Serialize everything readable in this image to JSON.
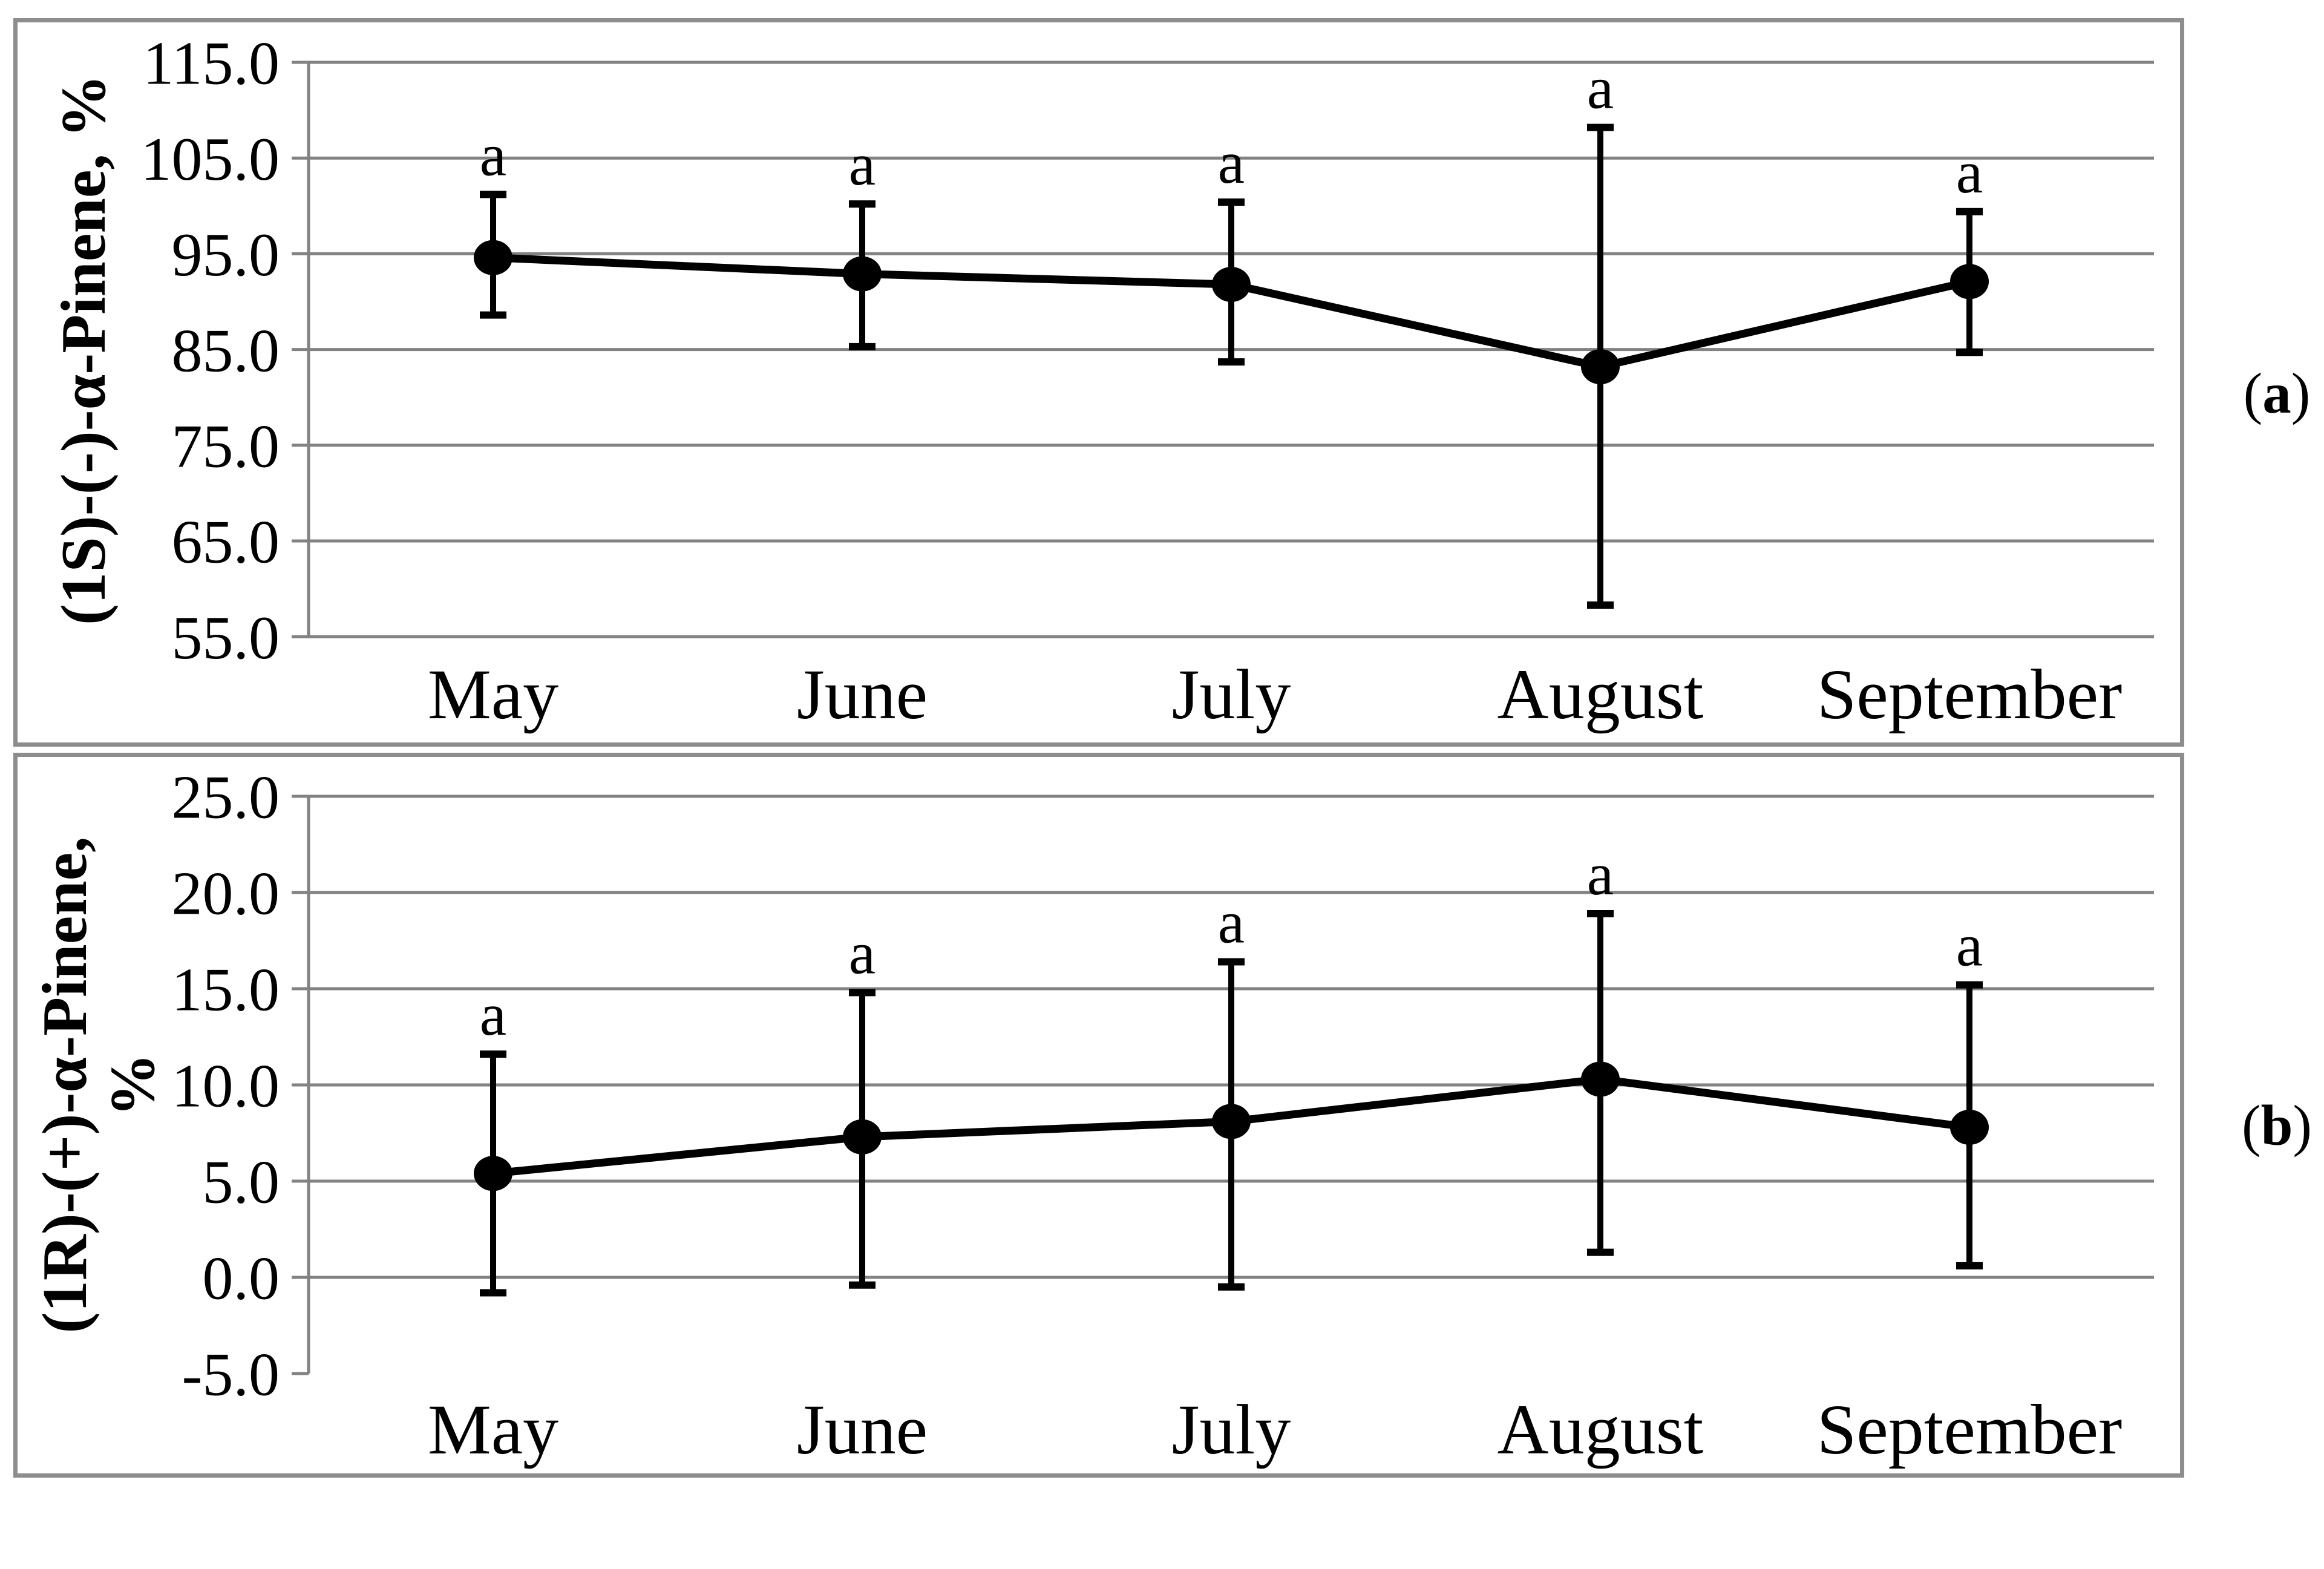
{
  "panel_labels": [
    {
      "prefix": "(",
      "letter": "a",
      "suffix": ")"
    },
    {
      "prefix": "(",
      "letter": "b",
      "suffix": ")"
    }
  ],
  "colors": {
    "background": "#ffffff",
    "gridline": "#828282",
    "panel_border": "#8d8d8d",
    "data": "#000000"
  },
  "chart_data": [
    {
      "type": "line",
      "panel": "a",
      "title": "",
      "xlabel": "",
      "ylabel_lines": [
        "(1S)-(-)-α-Pinene, %"
      ],
      "categories": [
        "May",
        "June",
        "July",
        "August",
        "September"
      ],
      "values": [
        94.6,
        92.9,
        91.8,
        83.2,
        92.1
      ],
      "error_upper": [
        101.2,
        100.2,
        100.4,
        108.2,
        99.4
      ],
      "error_lower": [
        88.6,
        85.3,
        83.7,
        58.3,
        84.7
      ],
      "point_labels": [
        "a",
        "a",
        "a",
        "a",
        "a"
      ],
      "ylim": [
        55,
        115
      ],
      "ytick_step": 10,
      "ytick_labels": [
        "115.0",
        "105.0",
        "95.0",
        "85.0",
        "75.0",
        "65.0",
        "55.0"
      ],
      "gridline_skip": [],
      "grid": "horizontal gray lines at every tick",
      "legend": "none",
      "marker": "filled-circle"
    },
    {
      "type": "line",
      "panel": "b",
      "title": "",
      "xlabel": "",
      "ylabel_lines": [
        "(1R)-(+)-α-Pinene,",
        "%"
      ],
      "categories": [
        "May",
        "June",
        "July",
        "August",
        "September"
      ],
      "values": [
        5.4,
        7.3,
        8.1,
        10.3,
        7.8
      ],
      "error_upper": [
        11.6,
        14.8,
        16.4,
        18.9,
        15.2
      ],
      "error_lower": [
        -0.8,
        -0.4,
        -0.5,
        1.3,
        0.6
      ],
      "point_labels": [
        "a",
        "a",
        "a",
        "a",
        "a"
      ],
      "ylim": [
        -5,
        25
      ],
      "ytick_step": 5,
      "ytick_labels": [
        "25.0",
        "20.0",
        "15.0",
        "10.0",
        "5.0",
        "0.0",
        "-5.0"
      ],
      "gridline_skip": [
        "-5.0"
      ],
      "grid": "horizontal gray lines at every tick except -5.0 (tick only)",
      "legend": "none",
      "marker": "filled-circle"
    }
  ]
}
